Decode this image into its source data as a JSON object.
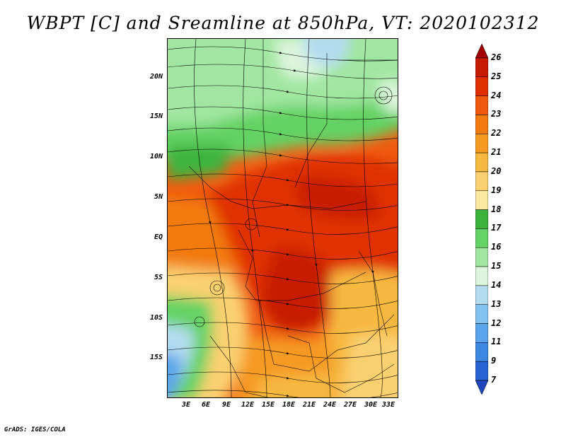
{
  "title": "WBPT [C] and Sreamline at 850hPa, VT: 2020102312",
  "credit": "GrADS: IGES/COLA",
  "map": {
    "y_ticks": [
      "20N",
      "15N",
      "10N",
      "5N",
      "EQ",
      "5S",
      "10S",
      "15S"
    ],
    "x_ticks": [
      "3E",
      "6E",
      "9E",
      "12E",
      "15E",
      "18E",
      "21E",
      "24E",
      "27E",
      "30E",
      "33E"
    ]
  },
  "colorbar": {
    "levels": [
      "26",
      "25",
      "24",
      "23",
      "22",
      "21",
      "20",
      "19",
      "18",
      "17",
      "16",
      "15",
      "14",
      "13",
      "12",
      "11",
      "9",
      "7"
    ],
    "colors": [
      "#a50000",
      "#c81a00",
      "#e03000",
      "#f05a10",
      "#f27a10",
      "#f59a20",
      "#f7b840",
      "#fad070",
      "#fbe8a0",
      "#3cb43c",
      "#64d264",
      "#a0e6a0",
      "#dcf5dc",
      "#b4dcf0",
      "#82c3f0",
      "#5aa5eb",
      "#3c87e1",
      "#2864d2",
      "#1e46be"
    ]
  }
}
